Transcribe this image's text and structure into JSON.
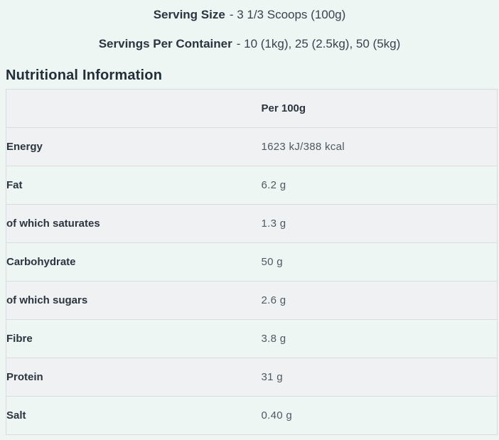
{
  "page": {
    "background_color": "#edf6f3",
    "row_alt_color": "#f0f1f2",
    "border_color": "#d7dcde",
    "text_dark_color": "#2a3540",
    "text_value_color": "#4e5962"
  },
  "serving_info": {
    "serving_size_label": "Serving Size",
    "serving_size_value": "- 3 1/3 Scoops (100g)",
    "servings_per_container_label": "Servings Per Container",
    "servings_per_container_value": "- 10 (1kg), 25 (2.5kg), 50 (5kg)"
  },
  "section_title": "Nutritional Information",
  "table": {
    "column_header": "Per 100g",
    "rows": [
      {
        "label": "Energy",
        "value": "1623 kJ/388 kcal"
      },
      {
        "label": "Fat",
        "value": "6.2 g"
      },
      {
        "label": "of which saturates",
        "value": "1.3 g"
      },
      {
        "label": "Carbohydrate",
        "value": "50 g"
      },
      {
        "label": "of which sugars",
        "value": "2.6 g"
      },
      {
        "label": "Fibre",
        "value": "3.8 g"
      },
      {
        "label": "Protein",
        "value": "31 g"
      },
      {
        "label": "Salt",
        "value": "0.40 g"
      }
    ]
  }
}
